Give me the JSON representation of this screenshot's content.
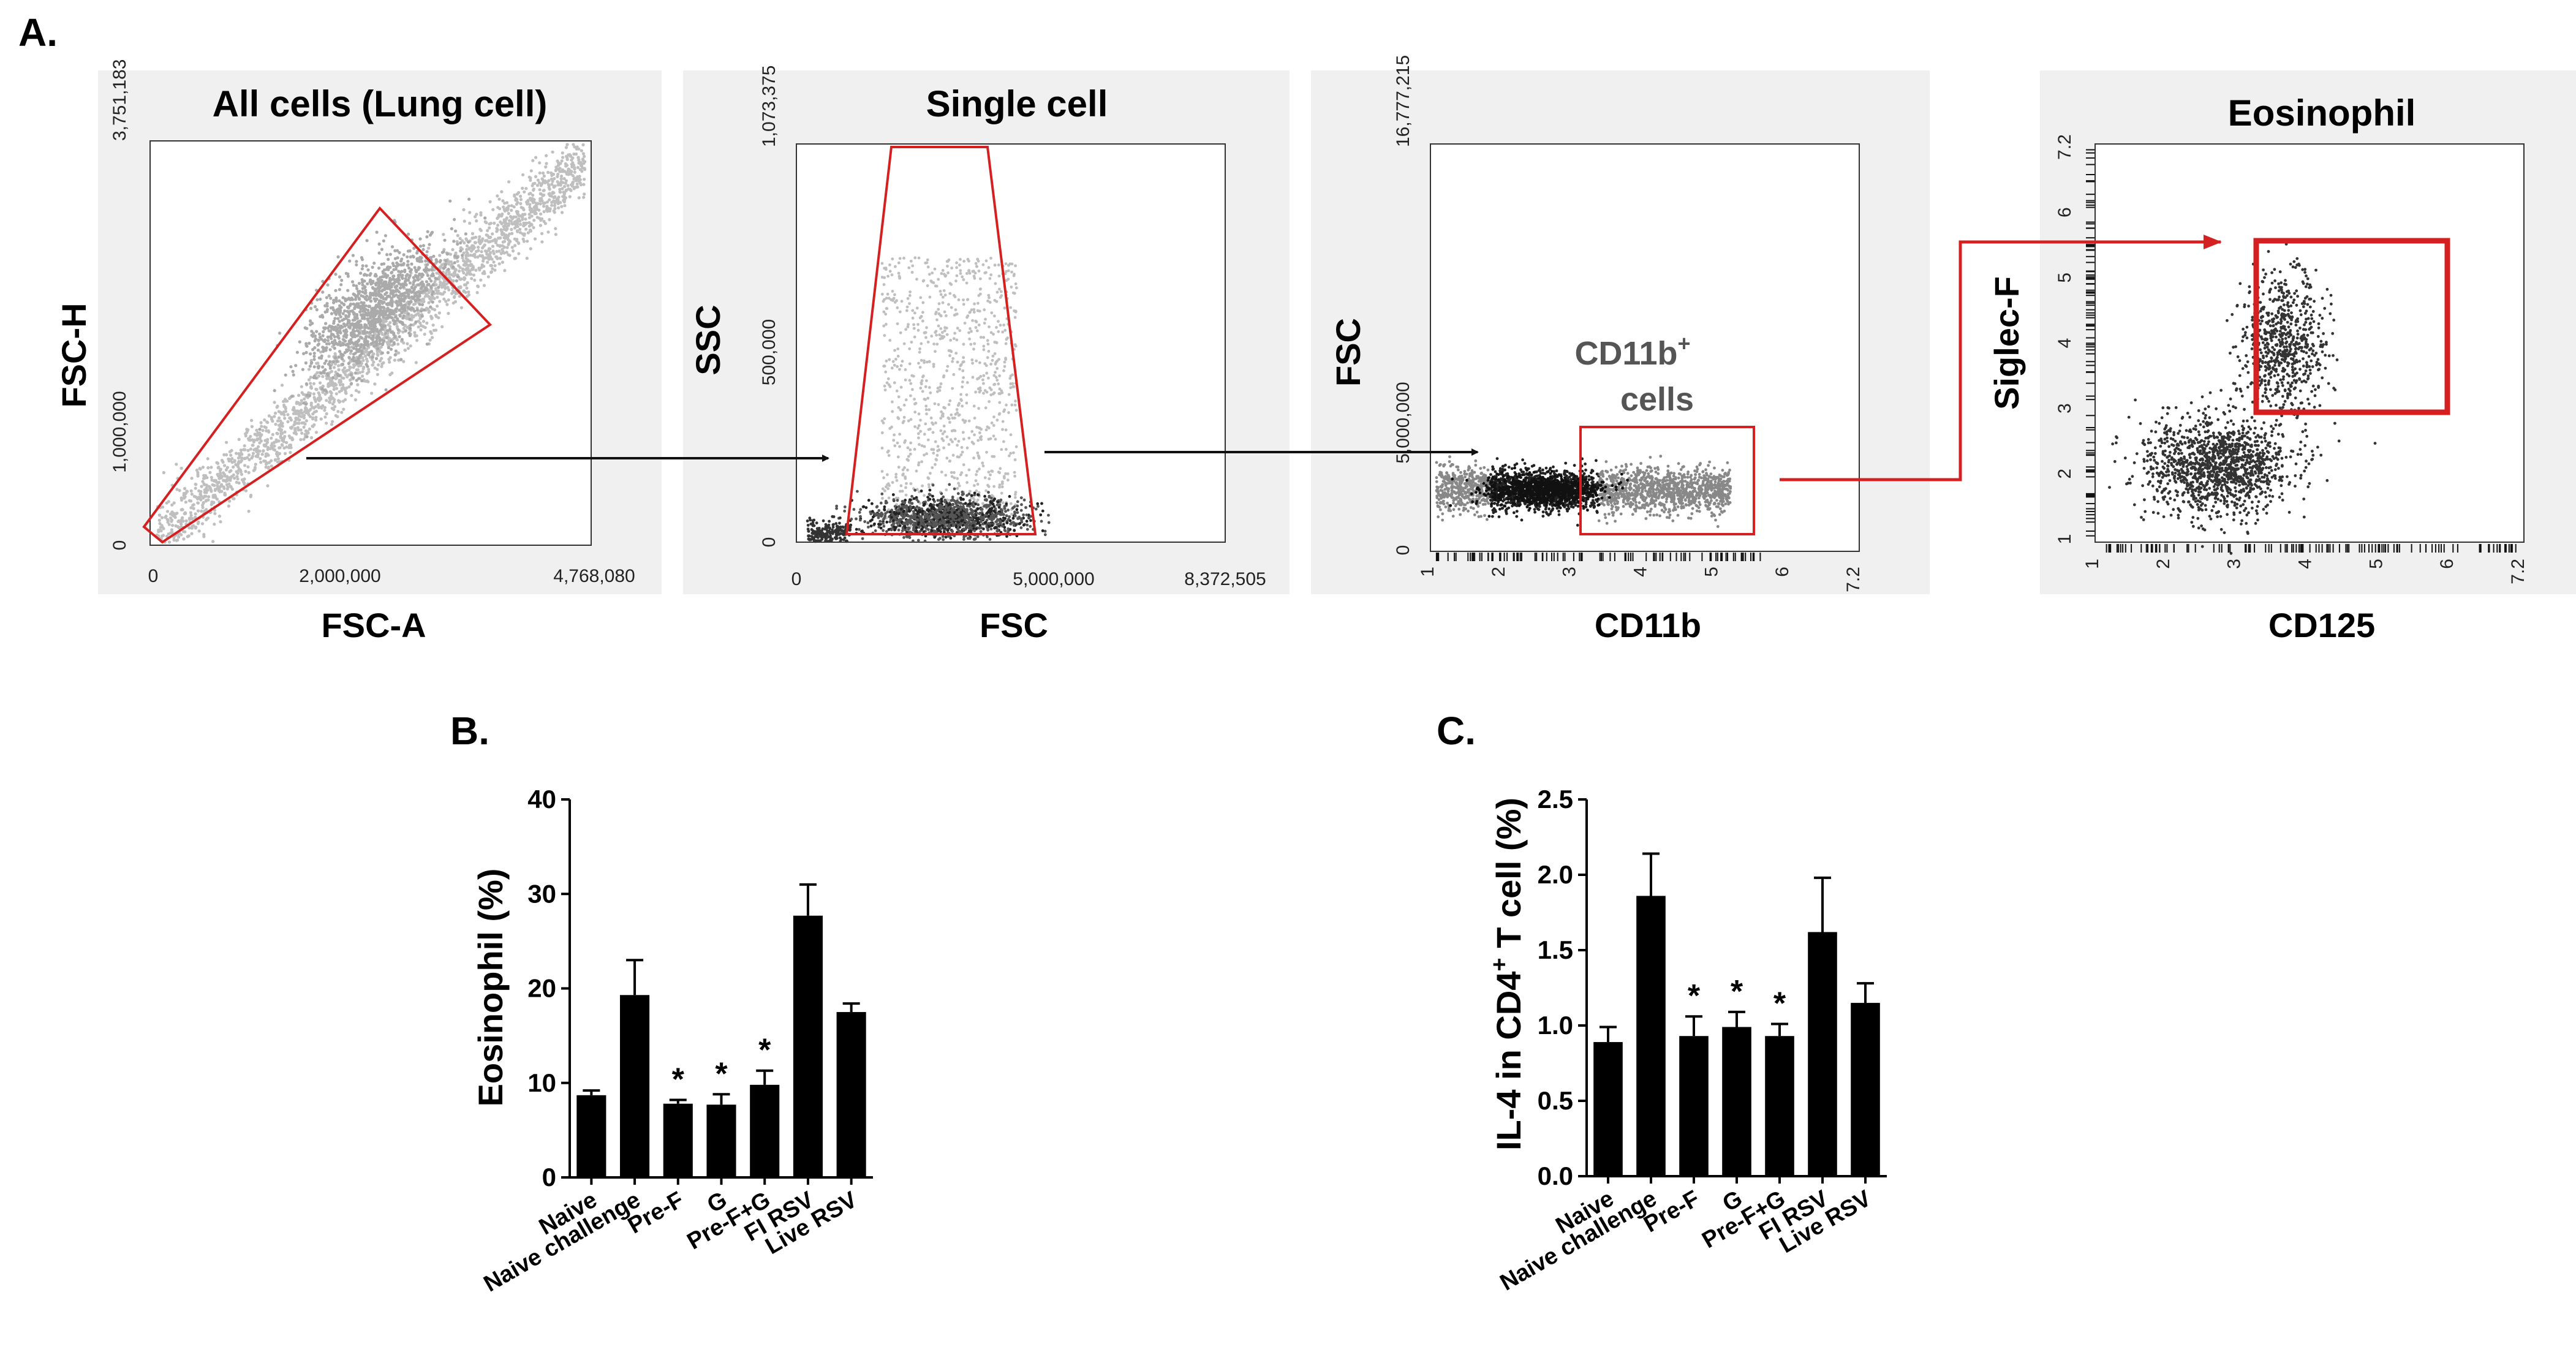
{
  "panel_labels": {
    "a": "A.",
    "b": "B.",
    "c": "C."
  },
  "colors": {
    "gate": "#d42020",
    "arrow_black": "#111111",
    "arrow_red": "#d42020",
    "dots_gray": "#bfbfbf",
    "dots_dark": "#222222",
    "bar": "#000000"
  },
  "flow_plots": [
    {
      "title": "All cells (Lung cell)",
      "xlabel": "FSC-A",
      "ylabel": "FSC-H",
      "xticks": [
        "0",
        "2,000,000",
        "4,768,080"
      ],
      "yticks": [
        "0",
        "1,000,000",
        "3,751,183"
      ]
    },
    {
      "title": "Single cell",
      "xlabel": "FSC",
      "ylabel": "SSC",
      "xticks": [
        "0",
        "5,000,000",
        "8,372,505"
      ],
      "yticks": [
        "0",
        "500,000",
        "1,073,375"
      ]
    },
    {
      "title": "",
      "xlabel": "CD11b",
      "ylabel": "FSC",
      "xticks": [
        "1",
        "2",
        "3",
        "4",
        "5",
        "6",
        "7.2"
      ],
      "yticks": [
        "0",
        "5,000,000",
        "16,777,215"
      ],
      "gate_label_line1": "CD11b",
      "gate_label_sup": "+",
      "gate_label_line2": "cells"
    },
    {
      "title": "Eosinophil",
      "xlabel": "CD125",
      "ylabel": "Siglec-F",
      "xticks": [
        "1",
        "2",
        "3",
        "4",
        "5",
        "6",
        "7.2"
      ],
      "yticks": [
        "1",
        "2",
        "3",
        "4",
        "5",
        "6",
        "7.2"
      ]
    }
  ],
  "chart_data": [
    {
      "type": "bar",
      "panel": "B.",
      "categories": [
        "Naive",
        "Naive challenge",
        "Pre-F",
        "G",
        "Pre-F+G",
        "FI RSV",
        "Live RSV"
      ],
      "values": [
        8.7,
        19.3,
        7.8,
        7.7,
        9.8,
        27.7,
        17.5
      ],
      "errors": [
        0.5,
        3.7,
        0.4,
        1.1,
        1.5,
        3.3,
        0.9
      ],
      "significance": [
        "",
        "",
        "*",
        "*",
        "*",
        "",
        ""
      ],
      "ylabel": "Eosinophil (%)",
      "ylim": [
        0,
        40
      ],
      "yticks": [
        0,
        10,
        20,
        30,
        40
      ],
      "ytick_labels": [
        "0",
        "10",
        "20",
        "30",
        "40"
      ]
    },
    {
      "type": "bar",
      "panel": "C.",
      "categories": [
        "Naive",
        "Naive challenge",
        "Pre-F",
        "G",
        "Pre-F+G",
        "FI RSV",
        "Live RSV"
      ],
      "values": [
        0.89,
        1.86,
        0.93,
        0.99,
        0.93,
        1.62,
        1.15
      ],
      "errors": [
        0.1,
        0.28,
        0.13,
        0.1,
        0.08,
        0.36,
        0.13
      ],
      "significance": [
        "",
        "",
        "*",
        "*",
        "*",
        "",
        ""
      ],
      "ylabel_pre": "IL-4 in CD4",
      "ylabel_sup": "+",
      "ylabel_post": " T cell (%)",
      "ylim": [
        0,
        2.5
      ],
      "yticks": [
        0,
        0.5,
        1.0,
        1.5,
        2.0,
        2.5
      ],
      "ytick_labels": [
        "0.0",
        "0.5",
        "1.0",
        "1.5",
        "2.0",
        "2.5"
      ]
    }
  ]
}
